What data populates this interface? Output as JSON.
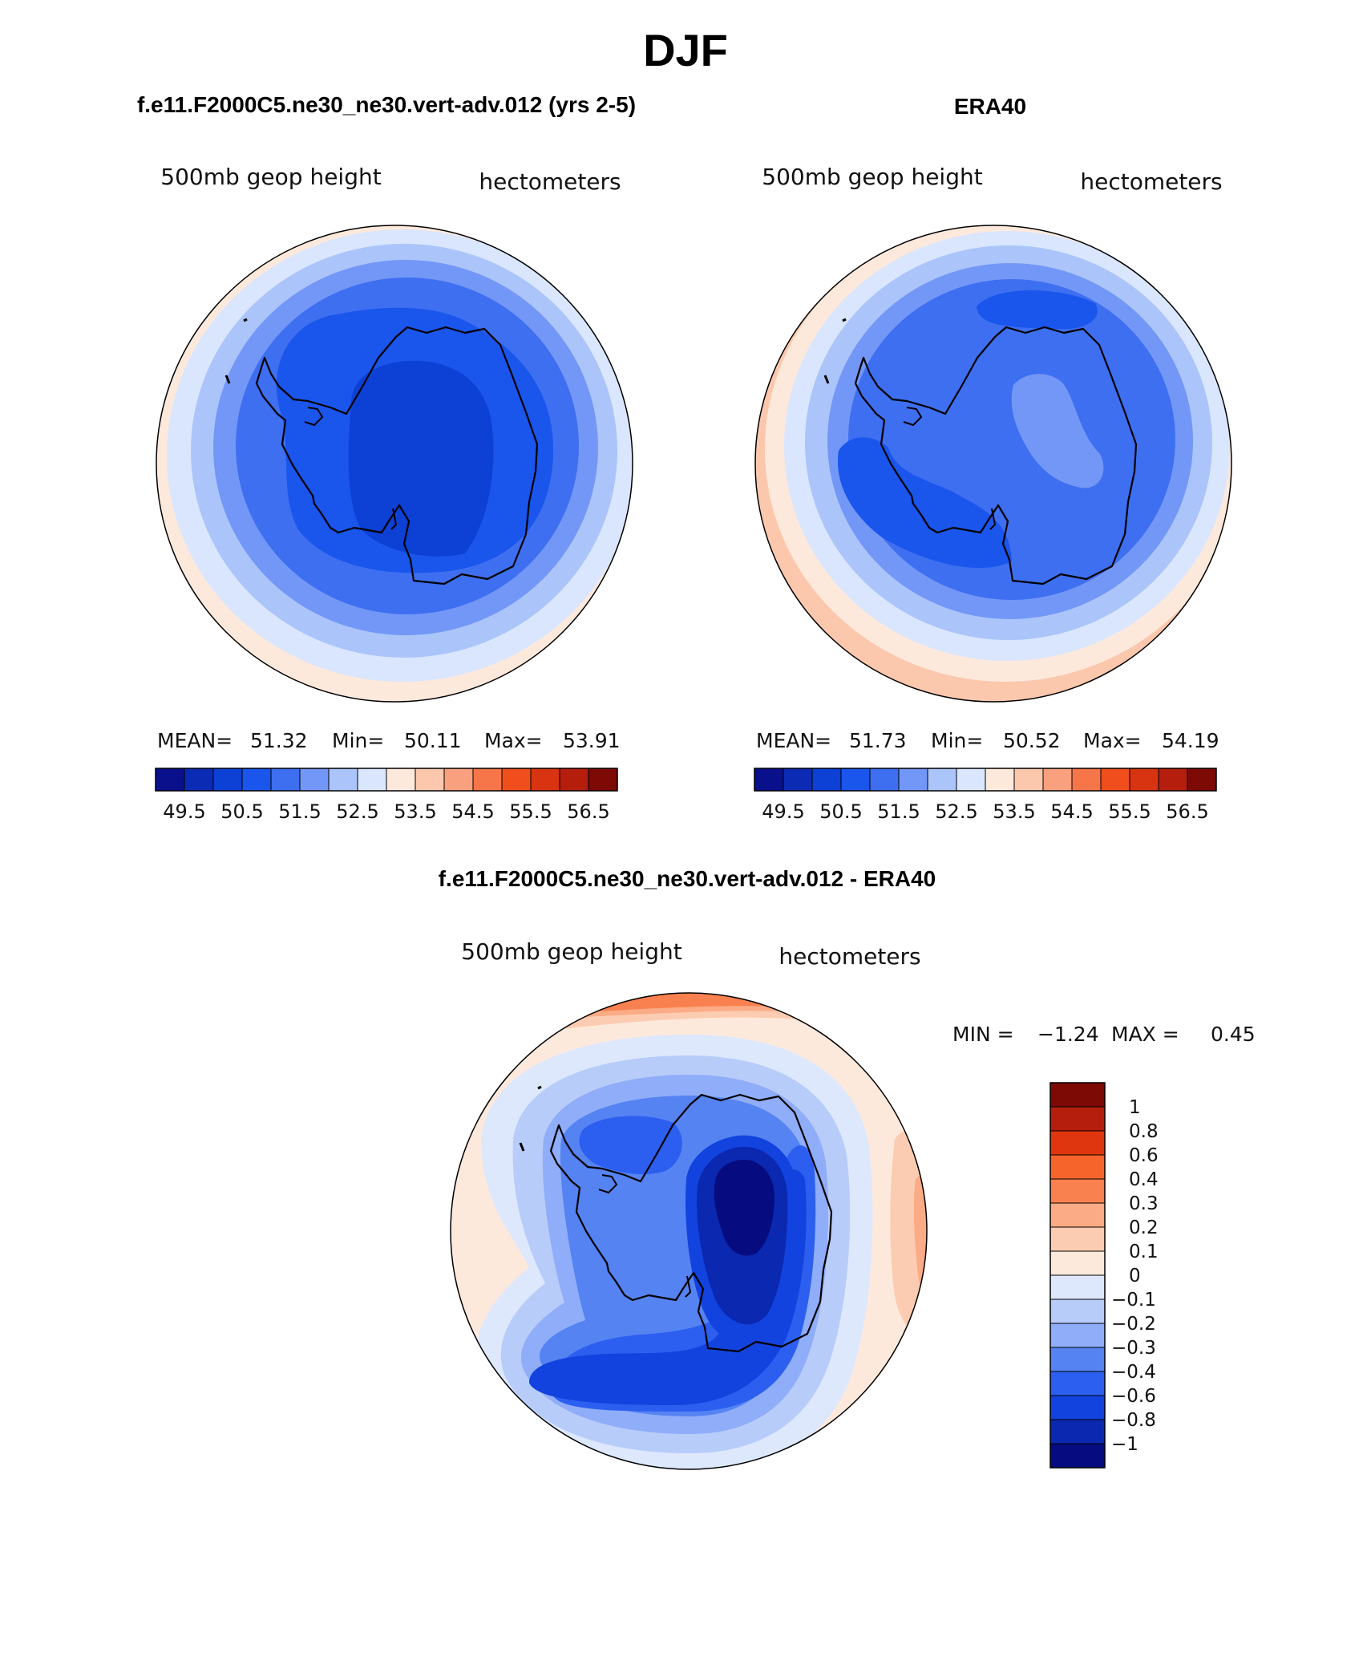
{
  "page": {
    "title": "DJF"
  },
  "panels": [
    {
      "id": "model",
      "case_title": "f.e11.F2000C5.ne30_ne30.vert-adv.012 (yrs 2-5)",
      "left_label": "500mb  geop  height",
      "right_label": "hectometers",
      "stats": {
        "mean_label": "MEAN=",
        "mean": "51.32",
        "min_label": "Min=",
        "min": "50.11",
        "max_label": "Max=",
        "max": "53.91"
      },
      "colorbar": {
        "colors": [
          "#0a0f8c",
          "#0b2bb4",
          "#0d40d4",
          "#1a55ec",
          "#3d6ff0",
          "#7397f6",
          "#abc4fa",
          "#d9e6fd",
          "#fde9dc",
          "#fbc8ad",
          "#f9a17e",
          "#f6764a",
          "#f14e1e",
          "#d83411",
          "#b51e0c",
          "#7d0a05"
        ],
        "ticks": [
          "49.5",
          "50.5",
          "51.5",
          "52.5",
          "53.5",
          "54.5",
          "55.5",
          "56.5"
        ]
      },
      "field_colors": [
        "#fde9dc",
        "#d9e6fd",
        "#abc4fa",
        "#7397f6",
        "#3d6ff0",
        "#1a55ec",
        "#0d40d4"
      ]
    },
    {
      "id": "obs",
      "case_title": "ERA40",
      "left_label": "500mb  geop  height",
      "right_label": "hectometers",
      "stats": {
        "mean_label": "MEAN=",
        "mean": "51.73",
        "min_label": "Min=",
        "min": "50.52",
        "max_label": "Max=",
        "max": "54.19"
      },
      "colorbar": {
        "colors": [
          "#0a0f8c",
          "#0b2bb4",
          "#0d40d4",
          "#1a55ec",
          "#3d6ff0",
          "#7397f6",
          "#abc4fa",
          "#d9e6fd",
          "#fde9dc",
          "#fbc8ad",
          "#f9a17e",
          "#f6764a",
          "#f14e1e",
          "#d83411",
          "#b51e0c",
          "#7d0a05"
        ],
        "ticks": [
          "49.5",
          "50.5",
          "51.5",
          "52.5",
          "53.5",
          "54.5",
          "55.5",
          "56.5"
        ]
      },
      "field_colors": [
        "#fbc8ad",
        "#fde9dc",
        "#d9e6fd",
        "#abc4fa",
        "#7397f6",
        "#3d6ff0",
        "#1a55ec"
      ]
    }
  ],
  "diff": {
    "case_title": "f.e11.F2000C5.ne30_ne30.vert-adv.012 - ERA40",
    "left_label": "500mb  geop  height",
    "right_label": "hectometers",
    "min_label": "MIN =",
    "min": "−1.24",
    "max_label": "MAX =",
    "max": "0.45",
    "colorbar": {
      "colors": [
        "#7d0a05",
        "#b51e0c",
        "#e0360f",
        "#f6642c",
        "#f9814f",
        "#fbab85",
        "#fcccb2",
        "#fde9dc",
        "#dde8fd",
        "#b8ccfa",
        "#8fadf8",
        "#5583f2",
        "#2c5ff0",
        "#1243de",
        "#0a28b0",
        "#060c7f"
      ],
      "labels": [
        "1",
        "0.8",
        "0.6",
        "0.4",
        "0.3",
        "0.2",
        "0.1",
        "0",
        "−0.1",
        "−0.2",
        "−0.3",
        "−0.4",
        "−0.6",
        "−0.8",
        "−1"
      ]
    }
  }
}
